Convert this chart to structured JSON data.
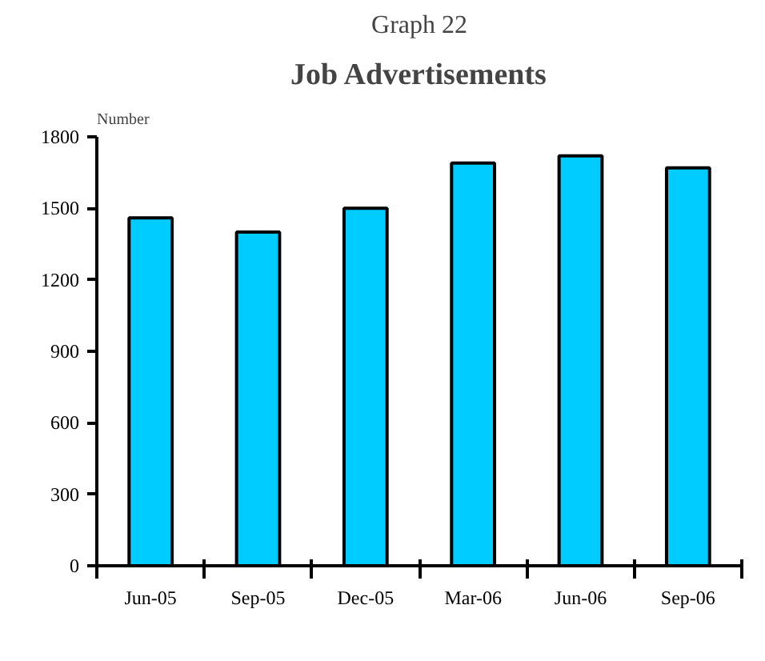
{
  "chart_data": {
    "type": "bar",
    "title": "Graph 22",
    "subtitle": "Job Advertisements",
    "ylabel": "Number",
    "categories": [
      "Jun-05",
      "Sep-05",
      "Dec-05",
      "Mar-06",
      "Jun-06",
      "Sep-06"
    ],
    "values": [
      1460,
      1400,
      1500,
      1690,
      1720,
      1670
    ],
    "color": "#00ccff",
    "ylim": [
      0,
      1800
    ],
    "yticks": [
      0,
      300,
      600,
      900,
      1200,
      1500,
      1800
    ],
    "grid": false
  }
}
